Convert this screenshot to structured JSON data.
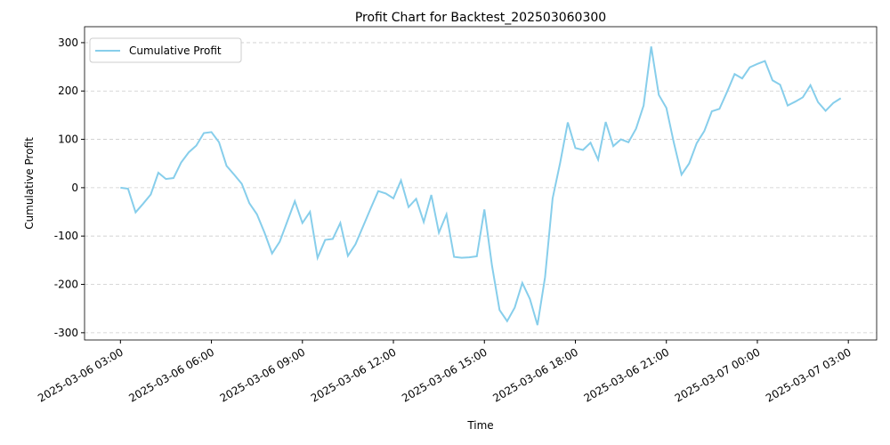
{
  "chart_data": {
    "type": "line",
    "title": "Profit Chart for Backtest_202503060300",
    "x_label": "Time",
    "y_label": "Cumulative Profit",
    "x": [
      "2025-03-06 03:00",
      "2025-03-06 03:15",
      "2025-03-06 03:30",
      "2025-03-06 03:45",
      "2025-03-06 04:00",
      "2025-03-06 04:15",
      "2025-03-06 04:30",
      "2025-03-06 04:45",
      "2025-03-06 05:00",
      "2025-03-06 05:15",
      "2025-03-06 05:30",
      "2025-03-06 05:45",
      "2025-03-06 06:00",
      "2025-03-06 06:15",
      "2025-03-06 06:30",
      "2025-03-06 06:45",
      "2025-03-06 07:00",
      "2025-03-06 07:15",
      "2025-03-06 07:30",
      "2025-03-06 07:45",
      "2025-03-06 08:00",
      "2025-03-06 08:15",
      "2025-03-06 08:30",
      "2025-03-06 08:45",
      "2025-03-06 09:00",
      "2025-03-06 09:15",
      "2025-03-06 09:30",
      "2025-03-06 09:45",
      "2025-03-06 10:00",
      "2025-03-06 10:15",
      "2025-03-06 10:30",
      "2025-03-06 10:45",
      "2025-03-06 11:00",
      "2025-03-06 11:15",
      "2025-03-06 11:30",
      "2025-03-06 11:45",
      "2025-03-06 12:00",
      "2025-03-06 12:15",
      "2025-03-06 12:30",
      "2025-03-06 12:45",
      "2025-03-06 13:00",
      "2025-03-06 13:15",
      "2025-03-06 13:30",
      "2025-03-06 13:45",
      "2025-03-06 14:00",
      "2025-03-06 14:15",
      "2025-03-06 14:30",
      "2025-03-06 14:45",
      "2025-03-06 15:00",
      "2025-03-06 15:15",
      "2025-03-06 15:30",
      "2025-03-06 15:45",
      "2025-03-06 16:00",
      "2025-03-06 16:15",
      "2025-03-06 16:30",
      "2025-03-06 16:45",
      "2025-03-06 17:00",
      "2025-03-06 17:15",
      "2025-03-06 17:30",
      "2025-03-06 17:45",
      "2025-03-06 18:00",
      "2025-03-06 18:15",
      "2025-03-06 18:30",
      "2025-03-06 18:45",
      "2025-03-06 19:00",
      "2025-03-06 19:15",
      "2025-03-06 19:30",
      "2025-03-06 19:45",
      "2025-03-06 20:00",
      "2025-03-06 20:15",
      "2025-03-06 20:30",
      "2025-03-06 20:45",
      "2025-03-06 21:00",
      "2025-03-06 21:15",
      "2025-03-06 21:30",
      "2025-03-06 21:45",
      "2025-03-06 22:00",
      "2025-03-06 22:15",
      "2025-03-06 22:30",
      "2025-03-06 22:45",
      "2025-03-06 23:00",
      "2025-03-06 23:15",
      "2025-03-06 23:30",
      "2025-03-06 23:45",
      "2025-03-07 00:00",
      "2025-03-07 00:15",
      "2025-03-07 00:30",
      "2025-03-07 00:45",
      "2025-03-07 01:00",
      "2025-03-07 01:15",
      "2025-03-07 01:30",
      "2025-03-07 01:45",
      "2025-03-07 02:00",
      "2025-03-07 02:15",
      "2025-03-07 02:30",
      "2025-03-07 02:45"
    ],
    "series": [
      {
        "name": "Cumulative Profit",
        "color": "#87ceeb",
        "values": [
          0,
          -2,
          -51,
          -33,
          -14,
          31,
          18,
          20,
          52,
          73,
          87,
          113,
          115,
          94,
          45,
          27,
          8,
          -32,
          -55,
          -93,
          -136,
          -112,
          -70,
          -28,
          -73,
          -50,
          -145,
          -108,
          -106,
          -73,
          -141,
          -117,
          -80,
          -43,
          -7,
          -12,
          -22,
          15,
          -40,
          -23,
          -71,
          -15,
          -93,
          -55,
          -143,
          -145,
          -144,
          -142,
          -45,
          -161,
          -253,
          -276,
          -248,
          -197,
          -230,
          -284,
          -185,
          -22,
          52,
          135,
          82,
          78,
          93,
          58,
          136,
          86,
          100,
          94,
          122,
          170,
          292,
          192,
          165,
          92,
          27,
          50,
          92,
          117,
          158,
          163,
          198,
          235,
          226,
          249,
          256,
          262,
          222,
          213,
          170,
          178,
          187,
          212,
          177,
          159,
          175,
          185
        ]
      }
    ],
    "xlim": [
      "2025-03-06 01:49",
      "2025-03-07 03:56"
    ],
    "xticks": [
      "2025-03-06 03:00",
      "2025-03-06 06:00",
      "2025-03-06 09:00",
      "2025-03-06 12:00",
      "2025-03-06 15:00",
      "2025-03-06 18:00",
      "2025-03-06 21:00",
      "2025-03-07 00:00",
      "2025-03-07 03:00"
    ],
    "ylim": [
      -315,
      333
    ],
    "yticks": [
      -300,
      -200,
      -100,
      0,
      100,
      200,
      300
    ],
    "grid": "y",
    "legend": "upper left"
  }
}
